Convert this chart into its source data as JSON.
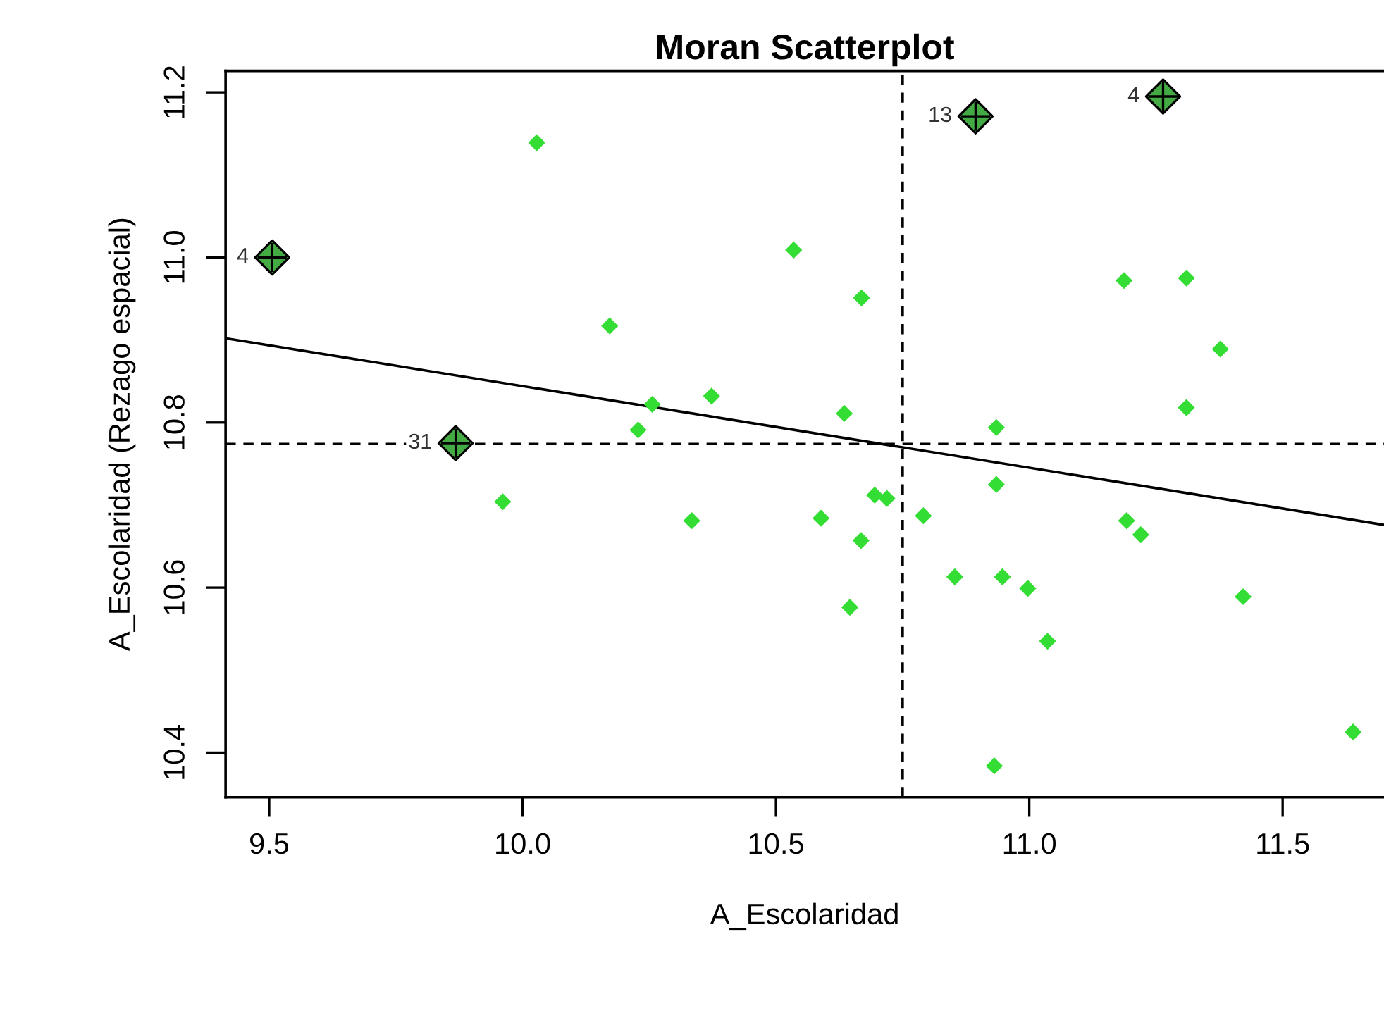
{
  "chart_data": {
    "type": "scatter",
    "title": "Moran Scatterplot",
    "xlabel": "A_Escolaridad",
    "ylabel": "A_Escolaridad (Rezago espacial)",
    "xlim": [
      9.414,
      11.7
    ],
    "ylim": [
      10.346,
      11.226
    ],
    "xticks": [
      {
        "value": 9.5,
        "label": "9.5"
      },
      {
        "value": 10.0,
        "label": "10.0"
      },
      {
        "value": 10.5,
        "label": "10.5"
      },
      {
        "value": 11.0,
        "label": "11.0"
      },
      {
        "value": 11.5,
        "label": "11.5"
      }
    ],
    "yticks": [
      {
        "value": 10.4,
        "label": "10.4"
      },
      {
        "value": 10.6,
        "label": "10.6"
      },
      {
        "value": 10.8,
        "label": "10.8"
      },
      {
        "value": 11.0,
        "label": "11.0"
      },
      {
        "value": 11.2,
        "label": "11.2"
      }
    ],
    "grid": false,
    "legend": false,
    "series": [
      {
        "marker": "diamond",
        "color": "#33dd33",
        "x": [
          10.028,
          10.172,
          10.256,
          10.228,
          10.535,
          10.669,
          10.373,
          10.635,
          10.935,
          11.187,
          11.31,
          11.377,
          11.31,
          9.961,
          10.334,
          10.589,
          10.695,
          10.719,
          10.668,
          10.791,
          10.646,
          10.935,
          11.192,
          11.22,
          10.853,
          10.947,
          10.997,
          11.422,
          11.036,
          11.639,
          10.931
        ],
        "values": [
          11.139,
          10.917,
          10.822,
          10.791,
          11.009,
          10.951,
          10.832,
          10.811,
          10.794,
          10.972,
          10.975,
          10.889,
          10.818,
          10.704,
          10.681,
          10.684,
          10.712,
          10.708,
          10.657,
          10.687,
          10.576,
          10.725,
          10.681,
          10.664,
          10.613,
          10.613,
          10.599,
          10.589,
          10.535,
          10.425,
          10.384
        ]
      },
      {
        "type": "scatter",
        "marker": "diamond",
        "color": "#44aa44",
        "x": [
          9.506,
          10.894,
          11.264,
          9.868
        ],
        "values": [
          11.0,
          11.171,
          11.195,
          10.775
        ]
      },
      {
        "type": "line",
        "color": "#000000",
        "line_style": "solid",
        "x": [
          9.414,
          11.7
        ],
        "values": [
          10.902,
          10.676
        ]
      }
    ],
    "ref_lines": [
      {
        "axis": "x",
        "value": 10.75,
        "line_style": "dashed",
        "color": "#000000"
      },
      {
        "axis": "y",
        "value": 10.774,
        "line_style": "dashed",
        "color": "#000000"
      }
    ],
    "annotations": [
      {
        "text": "4",
        "x": 9.506,
        "y": 11.0
      },
      {
        "text": "13",
        "x": 10.894,
        "y": 11.171
      },
      {
        "text": "4",
        "x": 11.264,
        "y": 11.195
      },
      {
        "text": "31",
        "x": 9.868,
        "y": 10.775
      }
    ]
  }
}
